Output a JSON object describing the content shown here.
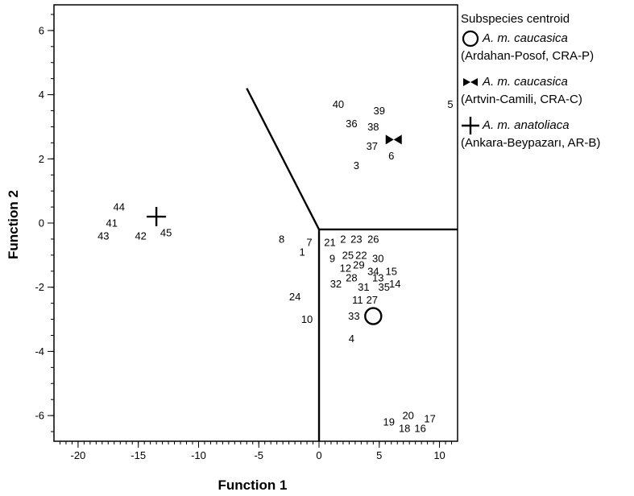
{
  "chart_data": {
    "type": "scatter",
    "xlabel": "Function 1",
    "ylabel": "Function 2",
    "xlim": [
      -22,
      11.5
    ],
    "ylim": [
      -6.8,
      6.8
    ],
    "xticks": [
      -20,
      -15,
      -10,
      -5,
      0,
      5,
      10
    ],
    "yticks": [
      -6,
      -4,
      -2,
      0,
      2,
      4,
      6
    ],
    "minor_tick_step": 0.5,
    "grid": false,
    "legend_position": "right, outside plot",
    "points": [
      {
        "label": "1",
        "x": -1.4,
        "y": -0.9
      },
      {
        "label": "2",
        "x": 2.0,
        "y": -0.5
      },
      {
        "label": "3",
        "x": 3.1,
        "y": 1.8
      },
      {
        "label": "4",
        "x": 2.7,
        "y": -3.6
      },
      {
        "label": "5",
        "x": 10.9,
        "y": 3.7
      },
      {
        "label": "6",
        "x": 6.0,
        "y": 2.1
      },
      {
        "label": "7",
        "x": -0.8,
        "y": -0.6
      },
      {
        "label": "8",
        "x": -3.1,
        "y": -0.5
      },
      {
        "label": "9",
        "x": 1.1,
        "y": -1.1
      },
      {
        "label": "10",
        "x": -1.0,
        "y": -3.0
      },
      {
        "label": "11",
        "x": 3.2,
        "y": -2.4
      },
      {
        "label": "12",
        "x": 2.2,
        "y": -1.4
      },
      {
        "label": "13",
        "x": 4.9,
        "y": -1.7
      },
      {
        "label": "14",
        "x": 6.3,
        "y": -1.9
      },
      {
        "label": "15",
        "x": 6.0,
        "y": -1.5
      },
      {
        "label": "16",
        "x": 8.4,
        "y": -6.4
      },
      {
        "label": "17",
        "x": 9.2,
        "y": -6.1
      },
      {
        "label": "18",
        "x": 7.1,
        "y": -6.4
      },
      {
        "label": "19",
        "x": 5.8,
        "y": -6.2
      },
      {
        "label": "20",
        "x": 7.4,
        "y": -6.0
      },
      {
        "label": "21",
        "x": 0.9,
        "y": -0.6
      },
      {
        "label": "22",
        "x": 3.5,
        "y": -1.0
      },
      {
        "label": "23",
        "x": 3.1,
        "y": -0.5
      },
      {
        "label": "24",
        "x": -2.0,
        "y": -2.3
      },
      {
        "label": "25",
        "x": 2.4,
        "y": -1.0
      },
      {
        "label": "26",
        "x": 4.5,
        "y": -0.5
      },
      {
        "label": "27",
        "x": 4.4,
        "y": -2.4
      },
      {
        "label": "28",
        "x": 2.7,
        "y": -1.7
      },
      {
        "label": "29",
        "x": 3.3,
        "y": -1.3
      },
      {
        "label": "30",
        "x": 4.9,
        "y": -1.1
      },
      {
        "label": "31",
        "x": 3.7,
        "y": -2.0
      },
      {
        "label": "32",
        "x": 1.4,
        "y": -1.9
      },
      {
        "label": "33",
        "x": 2.9,
        "y": -2.9
      },
      {
        "label": "34",
        "x": 4.5,
        "y": -1.5
      },
      {
        "label": "35",
        "x": 5.4,
        "y": -2.0
      },
      {
        "label": "36",
        "x": 2.7,
        "y": 3.1
      },
      {
        "label": "37",
        "x": 4.4,
        "y": 2.4
      },
      {
        "label": "38",
        "x": 4.5,
        "y": 3.0
      },
      {
        "label": "39",
        "x": 5.0,
        "y": 3.5
      },
      {
        "label": "40",
        "x": 1.6,
        "y": 3.7
      },
      {
        "label": "41",
        "x": -17.2,
        "y": 0.0
      },
      {
        "label": "42",
        "x": -14.8,
        "y": -0.4
      },
      {
        "label": "43",
        "x": -17.9,
        "y": -0.4
      },
      {
        "label": "44",
        "x": -16.6,
        "y": 0.5
      },
      {
        "label": "45",
        "x": -12.7,
        "y": -0.3
      }
    ],
    "centroids": [
      {
        "name": "A. m. caucasica",
        "group": "(Ardahan-Posof, CRA-P)",
        "symbol": "circle",
        "x": 4.5,
        "y": -2.9
      },
      {
        "name": "A. m. caucasica",
        "group": "(Artvin-Camili, CRA-C)",
        "symbol": "bowtie",
        "x": 6.2,
        "y": 2.6
      },
      {
        "name": "A. m. anatoliaca",
        "group": "(Ankara-Beypazarı, AR-B)",
        "symbol": "cross",
        "x": -13.5,
        "y": 0.2
      }
    ],
    "territorial_lines": [
      [
        [
          -6.0,
          4.2
        ],
        [
          0.0,
          -0.2
        ]
      ],
      [
        [
          0.0,
          -0.2
        ],
        [
          11.5,
          -0.2
        ]
      ],
      [
        [
          0.0,
          -0.2
        ],
        [
          0.0,
          -6.8
        ]
      ]
    ]
  },
  "legend": {
    "title": "Subspecies centroid",
    "entries": [
      {
        "symbol": "circle-icon",
        "name": "A. m. caucasica",
        "group": "(Ardahan-Posof, CRA-P)"
      },
      {
        "symbol": "bowtie-icon",
        "name": "A. m. caucasica",
        "group": "(Artvin-Camili, CRA-C)"
      },
      {
        "symbol": "cross-icon",
        "name": "A. m. anatoliaca",
        "group": "(Ankara-Beypazarı, AR-B)"
      }
    ]
  }
}
